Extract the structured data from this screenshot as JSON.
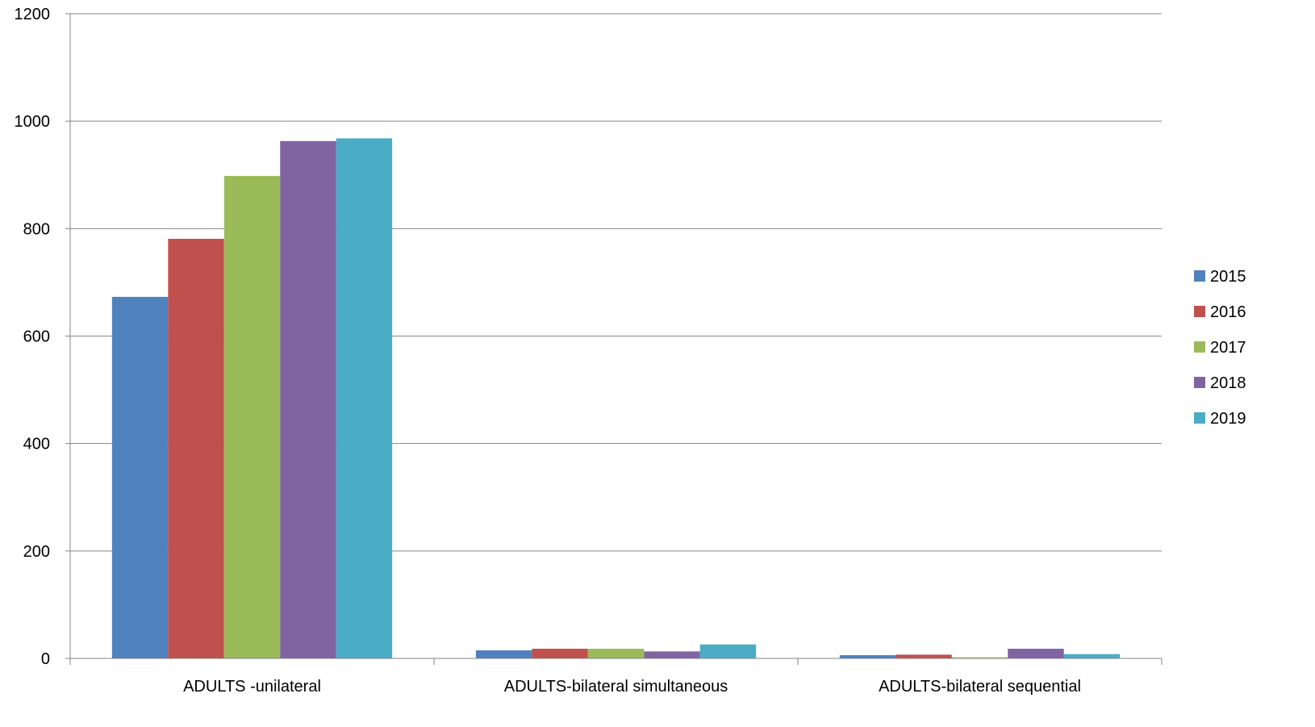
{
  "chart_data": {
    "type": "bar",
    "title": "",
    "xlabel": "",
    "ylabel": "",
    "categories": [
      "ADULTS -unilateral",
      "ADULTS-bilateral simultaneous",
      "ADULTS-bilateral sequential"
    ],
    "series": [
      {
        "name": "2015",
        "color": "#4F81BD",
        "values": [
          673,
          15,
          6
        ]
      },
      {
        "name": "2016",
        "color": "#C0504D",
        "values": [
          781,
          18,
          7
        ]
      },
      {
        "name": "2017",
        "color": "#9BBB59",
        "values": [
          898,
          18,
          2
        ]
      },
      {
        "name": "2018",
        "color": "#8064A2",
        "values": [
          963,
          13,
          18
        ]
      },
      {
        "name": "2019",
        "color": "#4BACC6",
        "values": [
          968,
          26,
          8
        ]
      }
    ],
    "ylim": [
      0,
      1200
    ],
    "yticks": [
      0,
      200,
      400,
      600,
      800,
      1000,
      1200
    ],
    "grid": true,
    "legend_position": "right"
  }
}
